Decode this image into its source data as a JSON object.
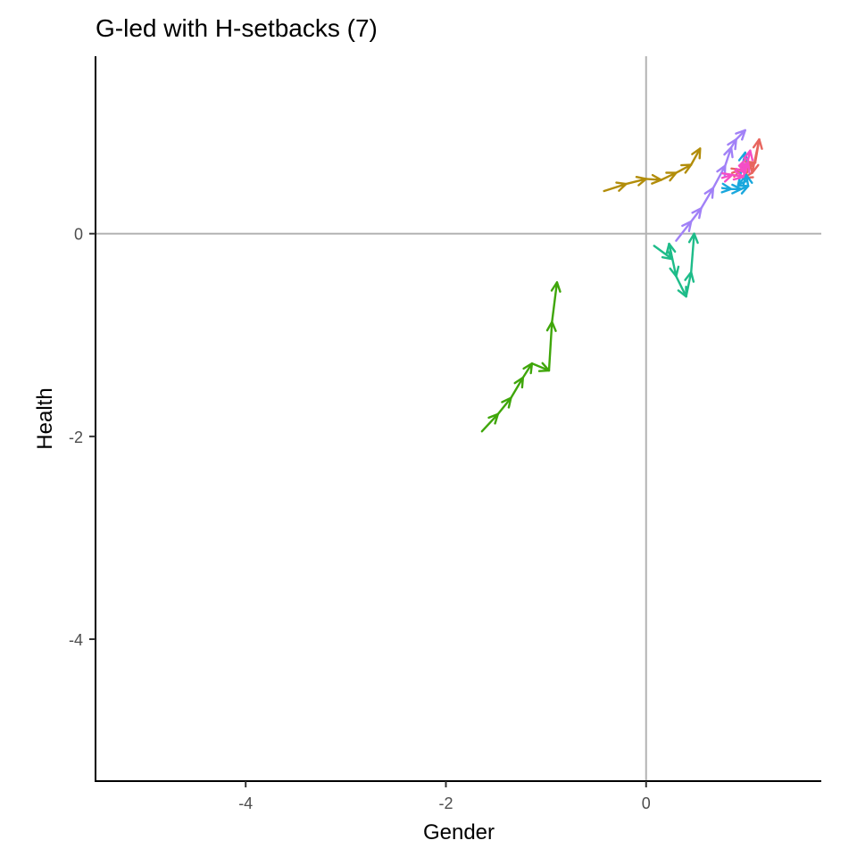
{
  "chart_data": {
    "type": "line",
    "title": "G-led with H-setbacks (7)",
    "xlabel": "Gender",
    "ylabel": "Health",
    "xlim": [
      -5.5,
      1.75
    ],
    "ylim": [
      -5.4,
      1.75
    ],
    "x_ticks": [
      {
        "value": -4,
        "label": "-4"
      },
      {
        "value": -2,
        "label": "-2"
      },
      {
        "value": 0,
        "label": "0"
      }
    ],
    "y_ticks": [
      {
        "value": -4,
        "label": "-4"
      },
      {
        "value": -2,
        "label": "-2"
      },
      {
        "value": 0,
        "label": "0"
      }
    ],
    "reference_lines": {
      "x": 0,
      "y": 0,
      "color": "#b3b3b3"
    },
    "grid": false,
    "legend": "none",
    "series": [
      {
        "color": "#e8655e",
        "points": [
          [
            0.86,
            0.6
          ],
          [
            0.95,
            0.63
          ],
          [
            1.03,
            0.68
          ],
          [
            1.09,
            0.7
          ],
          [
            1.13,
            0.93
          ],
          [
            1.06,
            0.6
          ],
          [
            0.97,
            0.55
          ]
        ]
      },
      {
        "color": "#b28d0a",
        "points": [
          [
            -0.42,
            0.42
          ],
          [
            -0.2,
            0.49
          ],
          [
            0.0,
            0.54
          ],
          [
            0.15,
            0.53
          ],
          [
            0.3,
            0.6
          ],
          [
            0.45,
            0.68
          ],
          [
            0.54,
            0.84
          ]
        ]
      },
      {
        "color": "#3fa60a",
        "points": [
          [
            -1.64,
            -1.95
          ],
          [
            -1.48,
            -1.78
          ],
          [
            -1.35,
            -1.62
          ],
          [
            -1.23,
            -1.42
          ],
          [
            -1.14,
            -1.28
          ],
          [
            -0.97,
            -1.35
          ],
          [
            -0.94,
            -0.87
          ],
          [
            -0.89,
            -0.48
          ]
        ]
      },
      {
        "color": "#1ebc89",
        "points": [
          [
            0.08,
            -0.12
          ],
          [
            0.26,
            -0.25
          ],
          [
            0.23,
            -0.1
          ],
          [
            0.3,
            -0.42
          ],
          [
            0.4,
            -0.62
          ],
          [
            0.45,
            -0.38
          ],
          [
            0.48,
            0.0
          ]
        ]
      },
      {
        "color": "#19a7dd",
        "points": [
          [
            0.76,
            0.45
          ],
          [
            0.85,
            0.44
          ],
          [
            0.95,
            0.44
          ],
          [
            1.02,
            0.47
          ],
          [
            1.0,
            0.58
          ],
          [
            0.92,
            0.48
          ],
          [
            0.99,
            0.8
          ]
        ]
      },
      {
        "color": "#a181f7",
        "points": [
          [
            0.3,
            -0.07
          ],
          [
            0.45,
            0.12
          ],
          [
            0.55,
            0.25
          ],
          [
            0.67,
            0.45
          ],
          [
            0.79,
            0.67
          ],
          [
            0.85,
            0.85
          ],
          [
            0.9,
            0.93
          ],
          [
            0.99,
            1.02
          ]
        ]
      },
      {
        "color": "#f54ec6",
        "points": [
          [
            0.76,
            0.55
          ],
          [
            0.86,
            0.58
          ],
          [
            0.97,
            0.56
          ],
          [
            1.02,
            0.7
          ],
          [
            0.93,
            0.67
          ],
          [
            0.99,
            0.6
          ],
          [
            1.04,
            0.82
          ]
        ]
      }
    ]
  }
}
